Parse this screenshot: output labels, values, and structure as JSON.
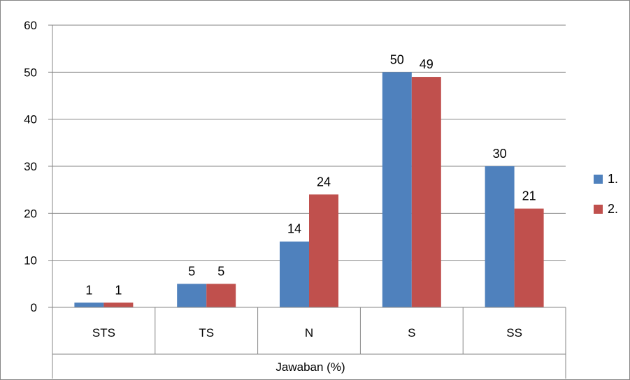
{
  "chart_data": {
    "type": "bar",
    "categories": [
      "STS",
      "TS",
      "N",
      "S",
      "SS"
    ],
    "series": [
      {
        "name": "1.",
        "color": "#4f81bd",
        "values": [
          1,
          5,
          14,
          50,
          30
        ]
      },
      {
        "name": "2.",
        "color": "#c0504d",
        "values": [
          1,
          5,
          24,
          49,
          21
        ]
      }
    ],
    "title": "",
    "xlabel": "Jawaban (%)",
    "ylabel": "",
    "ylim": [
      0,
      60
    ],
    "yticks": [
      "0",
      "10",
      "20",
      "30",
      "40",
      "50",
      "60"
    ],
    "grid": true,
    "legend_position": "right"
  }
}
